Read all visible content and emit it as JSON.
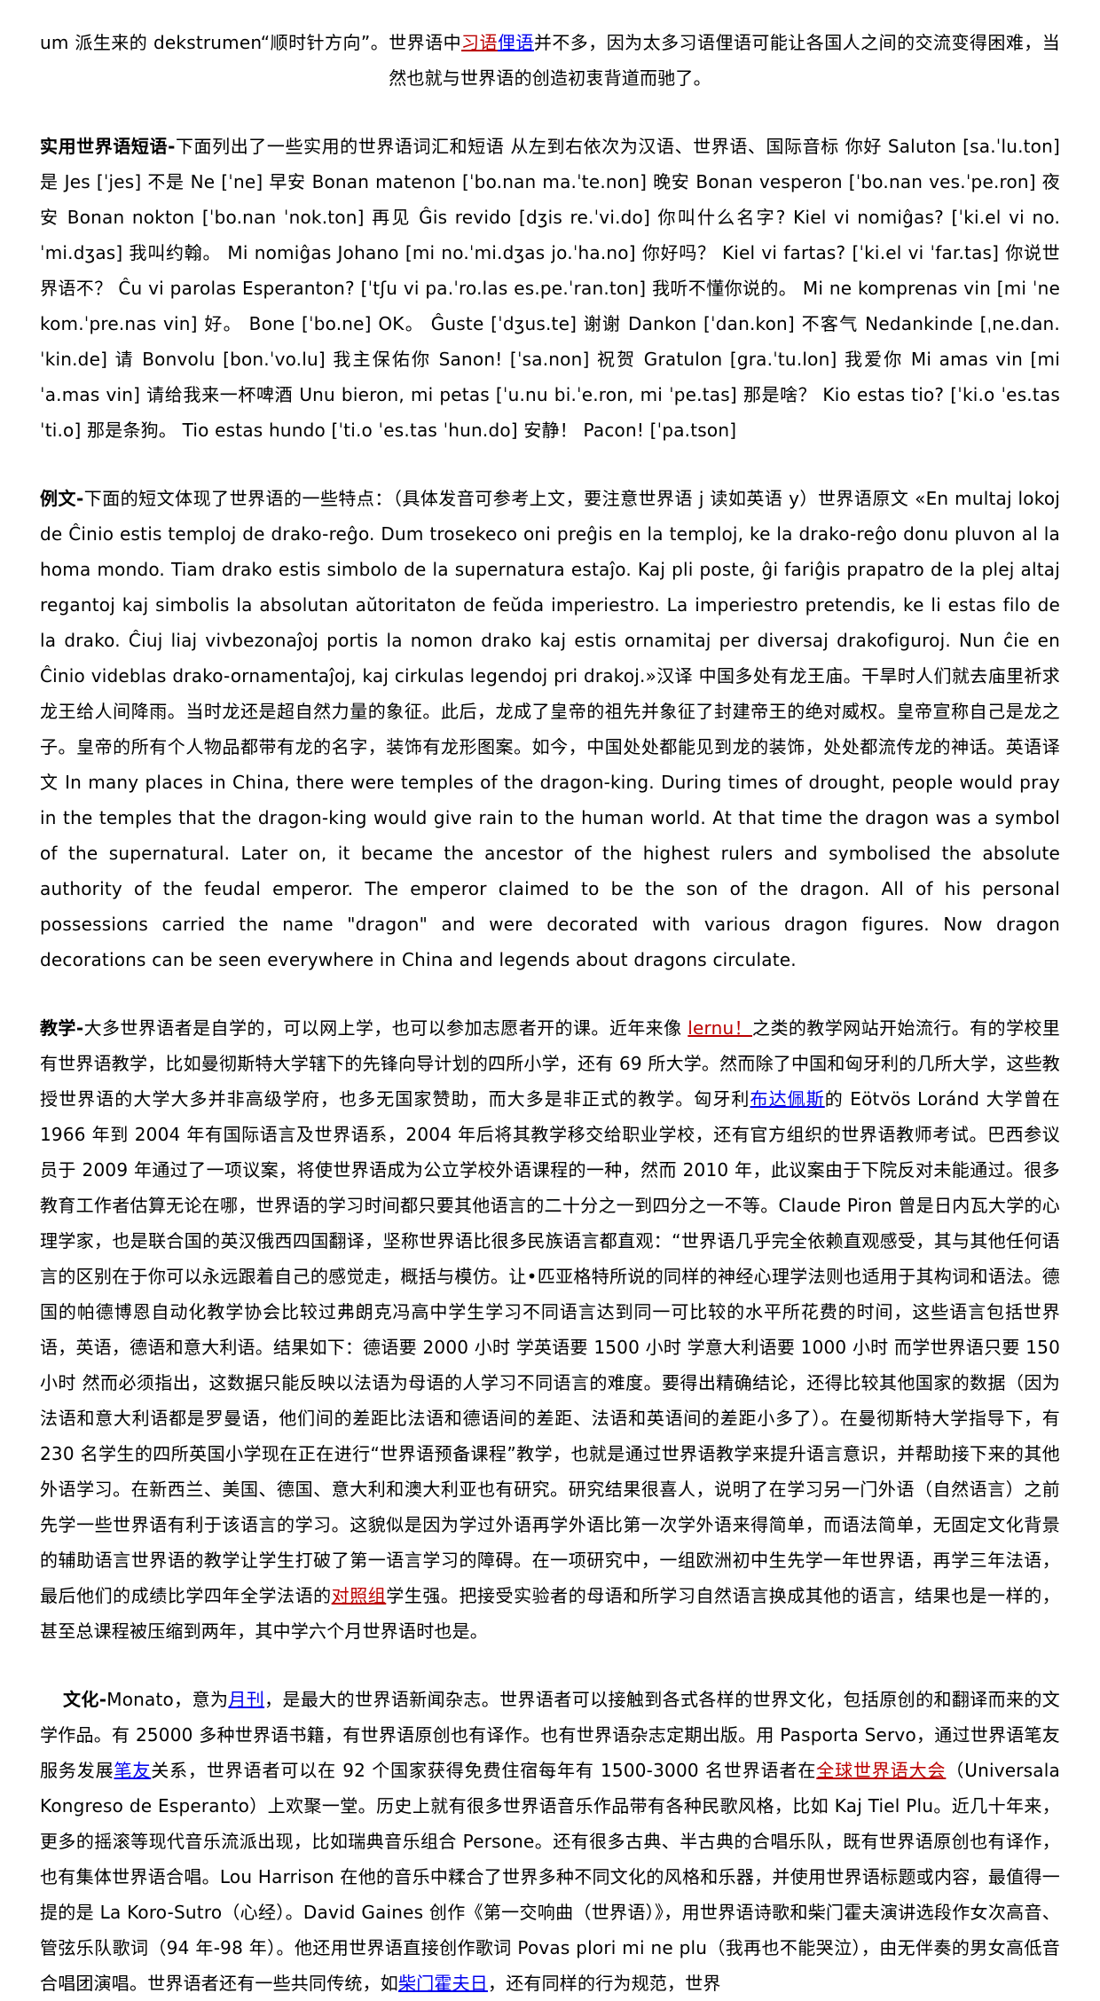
{
  "page": {
    "background": "#ffffff",
    "text_color": "#000000",
    "link_colors": {
      "blue": "#0000ee",
      "red": "#bb0000"
    }
  },
  "paragraphs": [
    {
      "id": "idiom-note",
      "align_last": "center",
      "runs": [
        {
          "t": "um 派生来的 dekstrumen“顺时针方向”。世界语中"
        },
        {
          "t": "习语",
          "link": "red",
          "name": "link-idiom"
        },
        {
          "t": "俚语",
          "link": "blue",
          "name": "link-slang"
        },
        {
          "t": "并不多，因为太多习语俚语可能让各国人之间的交流变得困难，当然也就与世界语的创造初衷背道而驰了。"
        }
      ]
    },
    {
      "id": "phrases",
      "runs": [
        {
          "t": "实用世界语短语-",
          "bold": true
        },
        {
          "t": "下面列出了一些实用的世界语词汇和短语 从左到右依次为汉语、世界语、国际音标 你好 Saluton [sa.ˈlu.ton] 是 Jes [ˈjes] 不是 Ne [ˈne] 早安 Bonan matenon [ˈbo.nan ma.ˈte.non] 晚安 Bonan vesperon [ˈbo.nan ves.ˈpe.ron] 夜安 Bonan nokton [ˈbo.nan ˈnok.ton] 再见 Ĝis revido [dʒis re.ˈvi.do] 你叫什么名字? Kiel vi nomiĝas? [ˈki.el vi no.ˈmi.dʒas] 我叫约翰。 Mi nomiĝas Johano [mi no.ˈmi.dʒas jo.ˈha.no] 你好吗？ Kiel vi fartas? [ˈki.el vi ˈfar.tas] 你说世界语不？ Ĉu vi parolas Esperanton? [ˈtʃu vi pa.ˈro.las es.pe.ˈran.ton] 我听不懂你说的。 Mi ne komprenas vin [mi ˈne kom.ˈpre.nas vin] 好。 Bone [ˈbo.ne] OK。 Ĝuste [ˈdʒus.te] 谢谢 Dankon [ˈdan.kon] 不客气 Nedankinde [ˌne.dan.ˈkin.de] 请 Bonvolu [bon.ˈvo.lu] 我主保佑你 Sanon! [ˈsa.non] 祝贺 Gratulon [gra.ˈtu.lon] 我爱你 Mi amas vin [mi ˈa.mas vin] 请给我来一杯啤酒 Unu bieron, mi petas [ˈu.nu bi.ˈe.ron, mi ˈpe.tas] 那是啥？ Kio estas tio? [ˈki.o ˈes.tas ˈti.o] 那是条狗。 Tio estas hundo [ˈti.o ˈes.tas ˈhun.do] 安静！ Pacon! [ˈpa.tson]"
        }
      ]
    },
    {
      "id": "example-text",
      "runs": [
        {
          "t": "例文-",
          "bold": true
        },
        {
          "t": "下面的短文体现了世界语的一些特点：（具体发音可参考上文，要注意世界语 j 读如英语 y）世界语原文 «En multaj lokoj de Ĉinio estis temploj de drako-reĝo. Dum trosekeco oni preĝis en la temploj, ke la drako-reĝo donu pluvon al la homa mondo. Tiam drako estis simbolo de la supernatura estaĵo. Kaj pli poste, ĝi fariĝis prapatro de la plej altaj regantoj kaj simbolis la absolutan aŭtoritaton de feŭda imperiestro. La imperiestro pretendis, ke li estas filo de la drako. Ĉiuj liaj vivbezonaĵoj portis la nomon drako kaj estis ornamitaj per diversaj drakofiguroj. Nun ĉie en Ĉinio videblas drako-ornamentaĵoj, kaj cirkulas legendoj pri drakoj.»汉译 中国多处有龙王庙。干旱时人们就去庙里祈求龙王给人间降雨。当时龙还是超自然力量的象征。此后，龙成了皇帝的祖先并象征了封建帝王的绝对威权。皇帝宣称自己是龙之子。皇帝的所有个人物品都带有龙的名字，装饰有龙形图案。如今，中国处处都能见到龙的装饰，处处都流传龙的神话。英语译文 In many places in China, there were temples of the dragon-king. During times of drought, people would pray in the temples that the dragon-king would give rain to the human world. At that time the dragon was a symbol of the supernatural. Later on, it became the ancestor of the highest rulers and symbolised the absolute authority of the feudal emperor. The emperor claimed to be the son of the dragon. All of his personal possessions carried the name \"dragon\" and were decorated with various dragon figures. Now dragon decorations can be seen everywhere in China and legends about dragons circulate."
        }
      ]
    },
    {
      "id": "teaching",
      "runs": [
        {
          "t": "教学-",
          "bold": true
        },
        {
          "t": "大多世界语者是自学的，可以网上学，也可以参加志愿者开的课。近年来像 "
        },
        {
          "t": "lernu！",
          "link": "red",
          "name": "link-lernu"
        },
        {
          "t": "之类的教学网站开始流行。有的学校里有世界语教学，比如曼彻斯特大学辖下的先锋向导计划的四所小学，还有 69 所大学。然而除了中国和匈牙利的几所大学，这些教授世界语的大学大多并非高级学府，也多无国家赞助，而大多是非正式的教学。匈牙利"
        },
        {
          "t": "布达佩斯",
          "link": "blue",
          "name": "link-budapest"
        },
        {
          "t": "的 Eötvös Loránd 大学曾在 1966 年到 2004 年有国际语言及世界语系，2004 年后将其教学移交给职业学校，还有官方组织的世界语教师考试。巴西参议员于 2009 年通过了一项议案，将使世界语成为公立学校外语课程的一种，然而 2010 年，此议案由于下院反对未能通过。很多教育工作者估算无论在哪，世界语的学习时间都只要其他语言的二十分之一到四分之一不等。Claude Piron 曾是日内瓦大学的心理学家，也是联合国的英汉俄西四国翻译，坚称世界语比很多民族语言都直观：“世界语几乎完全依赖直观感受，其与其他任何语言的区别在于你可以永远跟着自己的感觉走，概括与模仿。让•匹亚格特所说的同样的神经心理学法则也适用于其构词和语法。德国的帕德博恩自动化教学协会比较过弗朗克冯高中学生学习不同语言达到同一可比较的水平所花费的时间，这些语言包括世界语，英语，德语和意大利语。结果如下：德语要 2000 小时 学英语要 1500 小时 学意大利语要 1000 小时 而学世界语只要 150 小时 然而必须指出，这数据只能反映以法语为母语的人学习不同语言的难度。要得出精确结论，还得比较其他国家的数据（因为法语和意大利语都是罗曼语，他们间的差距比法语和德语间的差距、法语和英语间的差距小多了）。在曼彻斯特大学指导下，有 230 名学生的四所英国小学现在正在进行“世界语预备课程”教学，也就是通过世界语教学来提升语言意识，并帮助接下来的其他外语学习。在新西兰、美国、德国、意大利和澳大利亚也有研究。研究结果很喜人，说明了在学习另一门外语（自然语言）之前先学一些世界语有利于该语言的学习。这貌似是因为学过外语再学外语比第一次学外语来得简单，而语法简单，无固定文化背景的辅助语言世界语的教学让学生打破了第一语言学习的障碍。在一项研究中，一组欧洲初中生先学一年世界语，再学三年法语，最后他们的成绩比学四年全学法语的"
        },
        {
          "t": "对照组",
          "link": "red",
          "name": "link-control-group"
        },
        {
          "t": "学生强。把接受实验者的母语和所学习自然语言换成其他的语言，结果也是一样的，甚至总课程被压缩到两年，其中学六个月世界语时也是。"
        }
      ]
    },
    {
      "id": "culture",
      "indent": true,
      "runs": [
        {
          "t": "文化-",
          "bold": true
        },
        {
          "t": "Monato，意为"
        },
        {
          "t": "月刊",
          "link": "blue",
          "name": "link-monthly"
        },
        {
          "t": "，是最大的世界语新闻杂志。世界语者可以接触到各式各样的世界文化，包括原创的和翻译而来的文学作品。有 25000 多种世界语书籍，有世界语原创也有译作。也有世界语杂志定期出版。用 Pasporta Servo，通过世界语笔友服务发展"
        },
        {
          "t": "笔友",
          "link": "blue",
          "name": "link-pen-pal"
        },
        {
          "t": "关系，世界语者可以在 92 个国家获得免费住宿每年有 1500-3000 名世界语者在"
        },
        {
          "t": "全球世界语大会",
          "link": "red",
          "name": "link-universal-congress"
        },
        {
          "t": "（Universala Kongreso de Esperanto）上欢聚一堂。历史上就有很多世界语音乐作品带有各种民歌风格，比如 Kaj Tiel Plu。近几十年来，更多的摇滚等现代音乐流派出现，比如瑞典音乐组合 Persone。还有很多古典、半古典的合唱乐队，既有世界语原创也有译作，也有集体世界语合唱。Lou Harrison 在他的音乐中糅合了世界多种不同文化的风格和乐器，并使用世界语标题或内容，最值得一提的是 La Koro-Sutro（心经）。David Gaines 创作《第一交响曲（世界语）》，用世界语诗歌和柴门霍夫演讲选段作女次高音、管弦乐队歌词（94 年-98 年）。他还用世界语直接创作歌词 Povas plori mi ne plu（我再也不能哭泣），由无伴奏的男女高低音合唱团演唱。世界语者还有一些共同传统，如"
        },
        {
          "t": "柴门霍夫日",
          "link": "blue",
          "name": "link-zamenhof-day"
        },
        {
          "t": "，还有同样的行为规范，世界"
        }
      ]
    }
  ]
}
